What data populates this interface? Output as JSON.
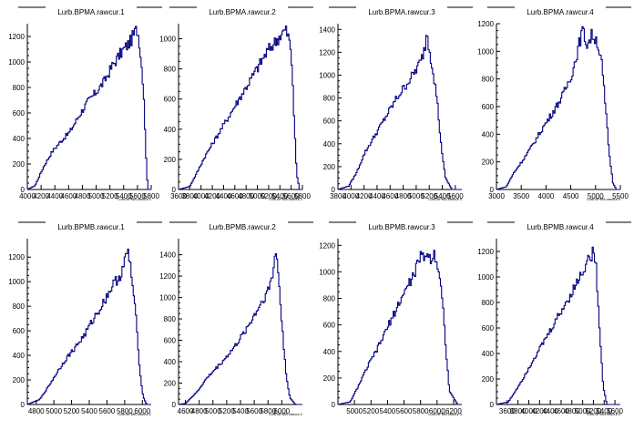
{
  "chart_data": [
    {
      "type": "histogram",
      "title": "Lurb.BPMA.rawcur.1",
      "xlabel": "Lurb.BPMA.rawcur.1",
      "xlim": [
        4000,
        5800
      ],
      "ylim": [
        0,
        1300
      ],
      "xticks": [
        4000,
        4200,
        4400,
        4600,
        4800,
        5000,
        5200,
        5400,
        5600,
        5800
      ],
      "yticks": [
        0,
        200,
        400,
        600,
        800,
        1000,
        1200
      ],
      "series": [
        {
          "x": [
            4000,
            4113,
            4239,
            4365,
            4491,
            4617,
            4743,
            4869,
            4995,
            5121,
            5247,
            5373,
            5499,
            5562,
            5593,
            5625,
            5688,
            5730,
            5750
          ],
          "y": [
            0,
            30,
            180,
            300,
            380,
            450,
            570,
            680,
            760,
            850,
            980,
            1080,
            1160,
            1230,
            1260,
            1180,
            800,
            200,
            0
          ]
        }
      ]
    },
    {
      "type": "histogram",
      "title": "Lurb.BPMA.rawcur.2",
      "xlabel": "Lurb.BPMA.rawcur.2",
      "xlim": [
        3600,
        5800
      ],
      "ylim": [
        0,
        1100
      ],
      "xticks": [
        3600,
        3800,
        4000,
        4200,
        4400,
        4600,
        4800,
        5000,
        5200,
        5400,
        5600,
        5800
      ],
      "yticks": [
        0,
        200,
        400,
        600,
        800,
        1000
      ],
      "series": [
        {
          "x": [
            3600,
            3800,
            3912,
            4071,
            4230,
            4389,
            4548,
            4707,
            4866,
            5025,
            5184,
            5343,
            5422,
            5502,
            5565,
            5620,
            5660,
            5700,
            5750
          ],
          "y": [
            0,
            20,
            100,
            220,
            320,
            420,
            520,
            620,
            720,
            820,
            920,
            990,
            1030,
            1060,
            1000,
            800,
            400,
            100,
            0
          ]
        }
      ]
    },
    {
      "type": "histogram",
      "title": "Lurb.BPMA.rawcur.3",
      "xlabel": "Lurb.BPMA.rawcur.3",
      "xlim": [
        3800,
        5700
      ],
      "ylim": [
        0,
        1450
      ],
      "xticks": [
        3800,
        4000,
        4200,
        4400,
        4600,
        4800,
        5000,
        5200,
        5400,
        5600
      ],
      "yticks": [
        0,
        200,
        400,
        600,
        800,
        1000,
        1200,
        1400
      ],
      "series": [
        {
          "x": [
            3800,
            3965,
            4088,
            4211,
            4334,
            4457,
            4580,
            4703,
            4826,
            4949,
            5072,
            5134,
            5165,
            5196,
            5257,
            5318,
            5380,
            5450,
            5550
          ],
          "y": [
            0,
            30,
            150,
            320,
            440,
            560,
            680,
            800,
            900,
            1000,
            1120,
            1240,
            1390,
            1250,
            1050,
            800,
            400,
            100,
            0
          ]
        }
      ]
    },
    {
      "type": "histogram",
      "title": "Lurb.BPMA.rawcur.4",
      "xlabel": "Lurb.BPMA.rawcur.4",
      "xlim": [
        3000,
        5500
      ],
      "ylim": [
        0,
        1200
      ],
      "xticks": [
        3000,
        3500,
        4000,
        4500,
        5000,
        5500
      ],
      "yticks": [
        0,
        200,
        400,
        600,
        800,
        1000,
        1200
      ],
      "series": [
        {
          "x": [
            3000,
            3200,
            3350,
            3548,
            3745,
            3943,
            4141,
            4339,
            4537,
            4635,
            4734,
            4833,
            4932,
            5030,
            5129,
            5200,
            5280,
            5350,
            5420
          ],
          "y": [
            0,
            20,
            120,
            220,
            330,
            450,
            560,
            680,
            850,
            1000,
            1150,
            1050,
            1120,
            1080,
            900,
            600,
            250,
            50,
            0
          ]
        }
      ]
    },
    {
      "type": "histogram",
      "title": "Lurb.BPMB.rawcur.1",
      "xlabel": "Lurb.BPMB.rawcur.1",
      "xlim": [
        4700,
        6100
      ],
      "ylim": [
        0,
        1350
      ],
      "xticks": [
        4800,
        5000,
        5200,
        5400,
        5600,
        5800,
        6000
      ],
      "yticks": [
        0,
        200,
        400,
        600,
        800,
        1000,
        1200
      ],
      "series": [
        {
          "x": [
            4700,
            4840,
            4942,
            5044,
            5146,
            5248,
            5350,
            5452,
            5554,
            5656,
            5758,
            5809,
            5834,
            5860,
            5885,
            5935,
            5975,
            6010,
            6050
          ],
          "y": [
            0,
            40,
            150,
            270,
            380,
            470,
            570,
            700,
            820,
            960,
            1060,
            1180,
            1250,
            1160,
            1000,
            650,
            250,
            60,
            0
          ]
        }
      ]
    },
    {
      "type": "histogram",
      "title": "Lurb.BPMB.rawcur.2",
      "xlabel": "Lurb.BPMB.rawcur.2",
      "xlim": [
        4500,
        6300
      ],
      "ylim": [
        0,
        1550
      ],
      "xticks": [
        4600,
        4800,
        5000,
        5200,
        5400,
        5600,
        5800,
        6000
      ],
      "yticks": [
        0,
        200,
        400,
        600,
        800,
        1000,
        1200,
        1400
      ],
      "series": [
        {
          "x": [
            4500,
            4600,
            4773,
            4903,
            5033,
            5163,
            5293,
            5423,
            5553,
            5683,
            5813,
            5878,
            5910,
            5943,
            5975,
            6020,
            6070,
            6120,
            6200
          ],
          "y": [
            0,
            10,
            120,
            240,
            330,
            420,
            520,
            640,
            780,
            930,
            1080,
            1250,
            1440,
            1300,
            1000,
            600,
            250,
            60,
            0
          ]
        }
      ]
    },
    {
      "type": "histogram",
      "title": "Lurb.BPMB.rawcur.3",
      "xlabel": "Lurb.BPMB.rawcur.3",
      "xlim": [
        4800,
        6300
      ],
      "ylim": [
        0,
        1250
      ],
      "xticks": [
        5000,
        5200,
        5400,
        5600,
        5800,
        6000,
        6200
      ],
      "yticks": [
        0,
        200,
        400,
        600,
        800,
        1000,
        1200
      ],
      "series": [
        {
          "x": [
            4800,
            4950,
            5064,
            5171,
            5278,
            5385,
            5492,
            5599,
            5706,
            5760,
            5813,
            5867,
            5920,
            5974,
            6027,
            6070,
            6110,
            6150,
            6250
          ],
          "y": [
            0,
            20,
            160,
            300,
            420,
            560,
            700,
            840,
            960,
            1050,
            1120,
            1130,
            1100,
            1140,
            1000,
            750,
            400,
            100,
            0
          ]
        }
      ]
    },
    {
      "type": "histogram",
      "title": "Lurb.BPMB.rawcur.4",
      "xlabel": "Lurb.BPMB.rawcur.4",
      "xlim": [
        3400,
        5700
      ],
      "ylim": [
        0,
        1300
      ],
      "xticks": [
        3600,
        3800,
        4000,
        4200,
        4400,
        4600,
        4800,
        5000,
        5200,
        5400,
        5600
      ],
      "yticks": [
        0,
        200,
        400,
        600,
        800,
        1000,
        1200
      ],
      "series": [
        {
          "x": [
            3400,
            3620,
            3774,
            3928,
            4082,
            4236,
            4390,
            4544,
            4698,
            4852,
            5006,
            5083,
            5160,
            5198,
            5237,
            5275,
            5330,
            5380,
            5450
          ],
          "y": [
            0,
            20,
            120,
            230,
            350,
            460,
            570,
            690,
            800,
            920,
            1050,
            1120,
            1170,
            1190,
            1150,
            900,
            500,
            150,
            0
          ]
        }
      ]
    }
  ],
  "style": {
    "line_color": "#000080",
    "axis_color": "#000000",
    "background": "#ffffff"
  }
}
